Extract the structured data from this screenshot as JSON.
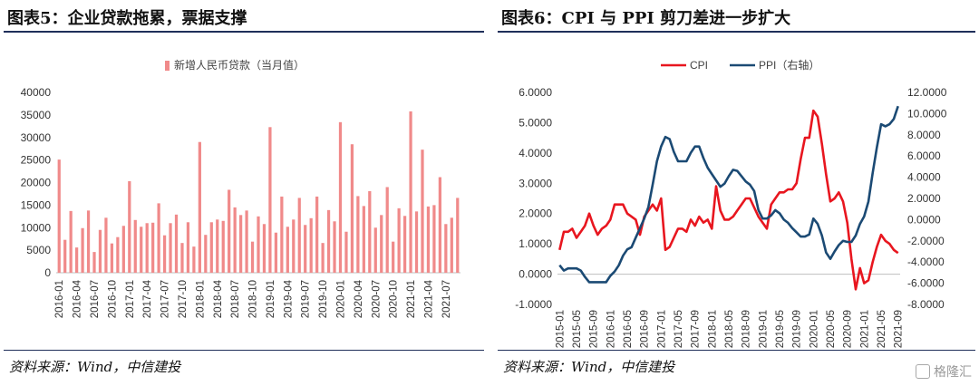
{
  "left": {
    "title": "图表5：企业贷款拖累，票据支撑",
    "source": "资料来源：Wind，中信建投",
    "chart_data": {
      "type": "bar",
      "legend": "新增人民币贷款（当月值）",
      "legend_position": "top",
      "color": "#f08a8a",
      "ylim": [
        0,
        40000
      ],
      "yticks": [
        "0",
        "5000",
        "10000",
        "15000",
        "20000",
        "25000",
        "30000",
        "35000",
        "40000"
      ],
      "xtick_labels": [
        "2016-01",
        "2016-04",
        "2016-07",
        "2016-10",
        "2017-01",
        "2017-04",
        "2017-07",
        "2017-10",
        "2018-01",
        "2018-04",
        "2018-07",
        "2018-10",
        "2019-01",
        "2019-04",
        "2019-07",
        "2019-10",
        "2020-01",
        "2020-04",
        "2020-07",
        "2020-10",
        "2021-01",
        "2021-04",
        "2021-07"
      ],
      "categories_start": "2016-01",
      "values": [
        25100,
        7300,
        13700,
        5600,
        9900,
        13800,
        4600,
        9500,
        12200,
        6500,
        7900,
        10400,
        20300,
        11700,
        10200,
        11000,
        11100,
        15400,
        8300,
        11000,
        12900,
        6600,
        11200,
        5800,
        29000,
        8400,
        11200,
        11800,
        11500,
        18400,
        14500,
        12800,
        13800,
        6900,
        12500,
        10800,
        32300,
        8900,
        16900,
        10200,
        11800,
        16600,
        10600,
        12100,
        16900,
        6600,
        13900,
        11400,
        33400,
        9100,
        28500,
        17000,
        14800,
        18100,
        10000,
        12800,
        19000,
        6900,
        14300,
        12600,
        35800,
        13600,
        27300,
        14700,
        15000,
        21200,
        10800,
        12200,
        16600
      ]
    }
  },
  "right": {
    "title": "图表6：CPI 与 PPI 剪刀差进一步扩大",
    "source": "资料来源：Wind，中信建投",
    "chart_data": {
      "type": "line",
      "legend_position": "top",
      "y_left": {
        "ylim": [
          -1,
          6
        ],
        "ticks": [
          "-1.0000",
          "0.0000",
          "1.0000",
          "2.0000",
          "3.0000",
          "4.0000",
          "5.0000",
          "6.0000"
        ]
      },
      "y_right": {
        "ylim": [
          -8,
          12
        ],
        "ticks": [
          "-8.0000",
          "-6.0000",
          "-4.0000",
          "-2.0000",
          "0.0000",
          "2.0000",
          "4.0000",
          "6.0000",
          "8.0000",
          "10.0000",
          "12.0000"
        ]
      },
      "xtick_labels": [
        "2015-01",
        "2015-05",
        "2015-09",
        "2016-01",
        "2016-05",
        "2016-09",
        "2017-01",
        "2017-05",
        "2017-09",
        "2018-01",
        "2018-05",
        "2018-09",
        "2019-01",
        "2019-05",
        "2019-09",
        "2020-01",
        "2020-05",
        "2020-09",
        "2021-01",
        "2021-05",
        "2021-09"
      ],
      "x_start": "2015-01",
      "series": [
        {
          "name": "CPI",
          "axis": "left",
          "color": "#e8161f",
          "values": [
            0.8,
            1.4,
            1.4,
            1.5,
            1.2,
            1.4,
            1.6,
            2.0,
            1.6,
            1.3,
            1.5,
            1.6,
            1.8,
            2.3,
            2.3,
            2.3,
            2.0,
            1.9,
            1.8,
            1.3,
            1.9,
            2.1,
            2.3,
            2.1,
            2.5,
            0.8,
            0.9,
            1.2,
            1.5,
            1.5,
            1.4,
            1.8,
            1.6,
            1.9,
            1.7,
            1.8,
            1.5,
            2.9,
            2.1,
            1.8,
            1.8,
            1.9,
            2.1,
            2.3,
            2.5,
            2.5,
            2.2,
            1.9,
            1.7,
            1.5,
            2.3,
            2.5,
            2.7,
            2.7,
            2.8,
            2.8,
            3.0,
            3.8,
            4.5,
            4.5,
            5.4,
            5.2,
            4.3,
            3.3,
            2.4,
            2.5,
            2.7,
            2.4,
            1.7,
            0.5,
            -0.5,
            0.2,
            -0.3,
            -0.2,
            0.4,
            0.9,
            1.3,
            1.1,
            1.0,
            0.8,
            0.7
          ]
        },
        {
          "name": "PPI（右轴）",
          "axis": "right",
          "color": "#1b4a74",
          "values": [
            -4.3,
            -4.8,
            -4.6,
            -4.6,
            -4.6,
            -4.8,
            -5.4,
            -5.9,
            -5.9,
            -5.9,
            -5.9,
            -5.9,
            -5.3,
            -4.9,
            -4.3,
            -3.4,
            -2.8,
            -2.6,
            -1.7,
            -0.8,
            0.1,
            1.2,
            3.3,
            5.5,
            6.9,
            7.8,
            7.6,
            6.4,
            5.5,
            5.5,
            5.5,
            6.3,
            6.9,
            6.9,
            5.8,
            4.9,
            4.3,
            3.7,
            3.1,
            3.4,
            4.1,
            4.7,
            4.6,
            4.1,
            3.6,
            3.3,
            2.7,
            0.9,
            0.1,
            0.1,
            0.4,
            0.9,
            0.6,
            0.0,
            -0.3,
            -0.8,
            -1.2,
            -1.6,
            -1.6,
            -1.4,
            0.1,
            -0.4,
            -1.5,
            -3.1,
            -3.7,
            -3.0,
            -2.4,
            -2.0,
            -2.1,
            -2.1,
            -1.5,
            -0.4,
            0.3,
            1.7,
            4.4,
            6.8,
            9.0,
            8.8,
            9.0,
            9.5,
            10.7
          ]
        }
      ]
    }
  },
  "watermark": "格隆汇"
}
